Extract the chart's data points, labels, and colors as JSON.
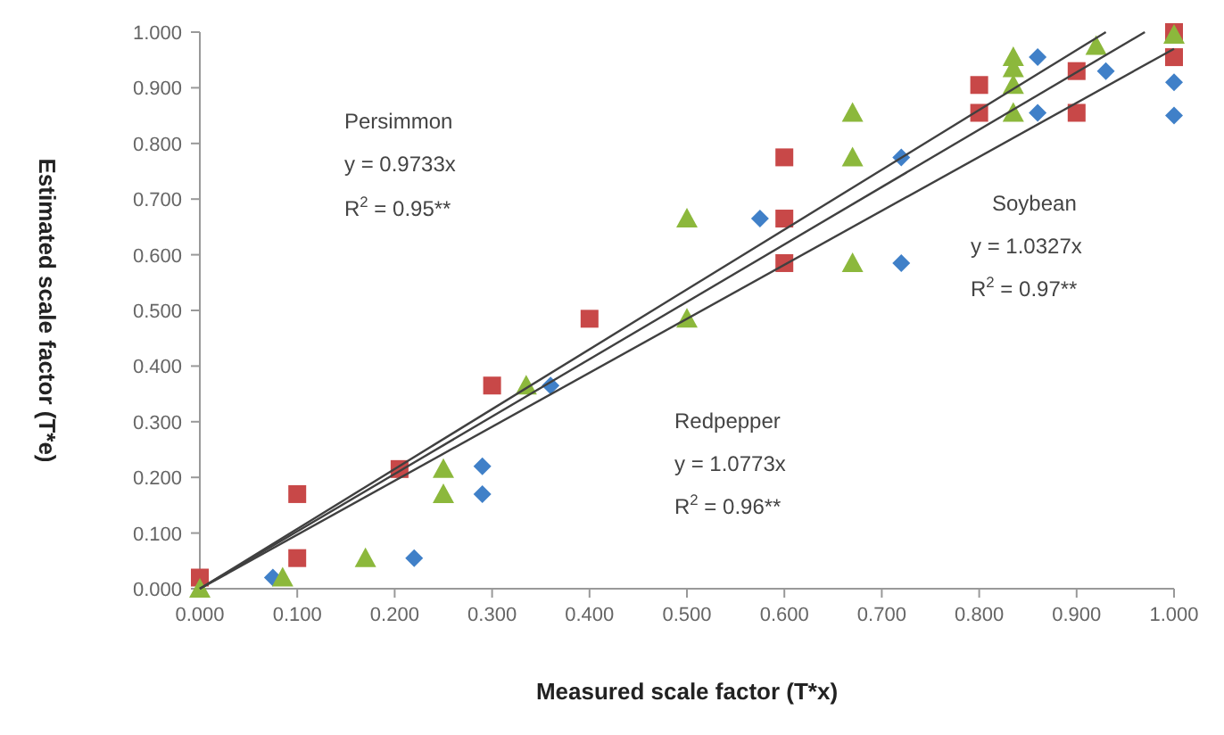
{
  "chart_data": {
    "type": "scatter",
    "xlabel": "Measured scale factor (T*x)",
    "ylabel": "Estimated scale factor (T*e)",
    "xlim": [
      0,
      1
    ],
    "ylim": [
      0,
      1
    ],
    "xticks": [
      {
        "value": 0,
        "label": "0.000"
      },
      {
        "value": 0.1,
        "label": "0.100"
      },
      {
        "value": 0.2,
        "label": "0.200"
      },
      {
        "value": 0.3,
        "label": "0.300"
      },
      {
        "value": 0.4,
        "label": "0.400"
      },
      {
        "value": 0.5,
        "label": "0.500"
      },
      {
        "value": 0.6,
        "label": "0.600"
      },
      {
        "value": 0.7,
        "label": "0.700"
      },
      {
        "value": 0.8,
        "label": "0.800"
      },
      {
        "value": 0.9,
        "label": "0.900"
      },
      {
        "value": 1,
        "label": "1.000"
      }
    ],
    "yticks": [
      {
        "value": 0,
        "label": "0.000"
      },
      {
        "value": 0.1,
        "label": "0.100"
      },
      {
        "value": 0.2,
        "label": "0.200"
      },
      {
        "value": 0.3,
        "label": "0.300"
      },
      {
        "value": 0.4,
        "label": "0.400"
      },
      {
        "value": 0.5,
        "label": "0.500"
      },
      {
        "value": 0.6,
        "label": "0.600"
      },
      {
        "value": 0.7,
        "label": "0.700"
      },
      {
        "value": 0.8,
        "label": "0.800"
      },
      {
        "value": 0.9,
        "label": "0.900"
      },
      {
        "value": 1,
        "label": "1.000"
      }
    ],
    "grid": false,
    "series": [
      {
        "type": "line",
        "marker": "none",
        "color": "#404040",
        "x": [
          0,
          1
        ],
        "values": [
          0,
          0.97
        ]
      },
      {
        "type": "line",
        "marker": "none",
        "color": "#404040",
        "x": [
          0,
          0.97
        ],
        "values": [
          0,
          1.0
        ]
      },
      {
        "type": "line",
        "marker": "none",
        "color": "#404040",
        "x": [
          0,
          0.93
        ],
        "values": [
          0,
          1.0
        ]
      },
      {
        "marker": "diamond",
        "color": "#4080c8",
        "x": [
          0.075,
          0.22,
          0.29,
          0.29,
          0.36,
          0.575,
          0.72,
          0.72,
          0.86,
          0.86,
          0.93,
          1.0,
          1.0
        ],
        "values": [
          0.02,
          0.055,
          0.22,
          0.17,
          0.365,
          0.665,
          0.775,
          0.585,
          0.955,
          0.855,
          0.93,
          0.91,
          0.85
        ]
      },
      {
        "marker": "square",
        "color": "#c84848",
        "x": [
          0,
          0.1,
          0.1,
          0.205,
          0.3,
          0.4,
          0.6,
          0.6,
          0.6,
          0.8,
          0.8,
          0.9,
          0.9,
          1.0,
          1.0
        ],
        "values": [
          0.02,
          0.17,
          0.055,
          0.215,
          0.365,
          0.485,
          0.775,
          0.665,
          0.585,
          0.905,
          0.855,
          0.93,
          0.855,
          1.0,
          0.955
        ]
      },
      {
        "marker": "triangle",
        "color": "#8cb83c",
        "x": [
          0,
          0.085,
          0.17,
          0.25,
          0.25,
          0.335,
          0.5,
          0.5,
          0.67,
          0.67,
          0.67,
          0.835,
          0.835,
          0.835,
          0.835,
          0.92,
          1.0
        ],
        "values": [
          0,
          0.02,
          0.055,
          0.215,
          0.17,
          0.365,
          0.665,
          0.485,
          0.855,
          0.775,
          0.585,
          0.955,
          0.935,
          0.905,
          0.855,
          0.975,
          0.995
        ]
      }
    ],
    "annotations": [
      "Persimmon",
      "y = 0.9733x",
      "R$^{2}$ = 0.95**",
      "Soybean",
      "y = 1.0327x",
      "R$^{2}$ = 0.97**",
      "Redpepper",
      "y = 1.0773x",
      "R$^{2}$ = 0.96**"
    ]
  }
}
